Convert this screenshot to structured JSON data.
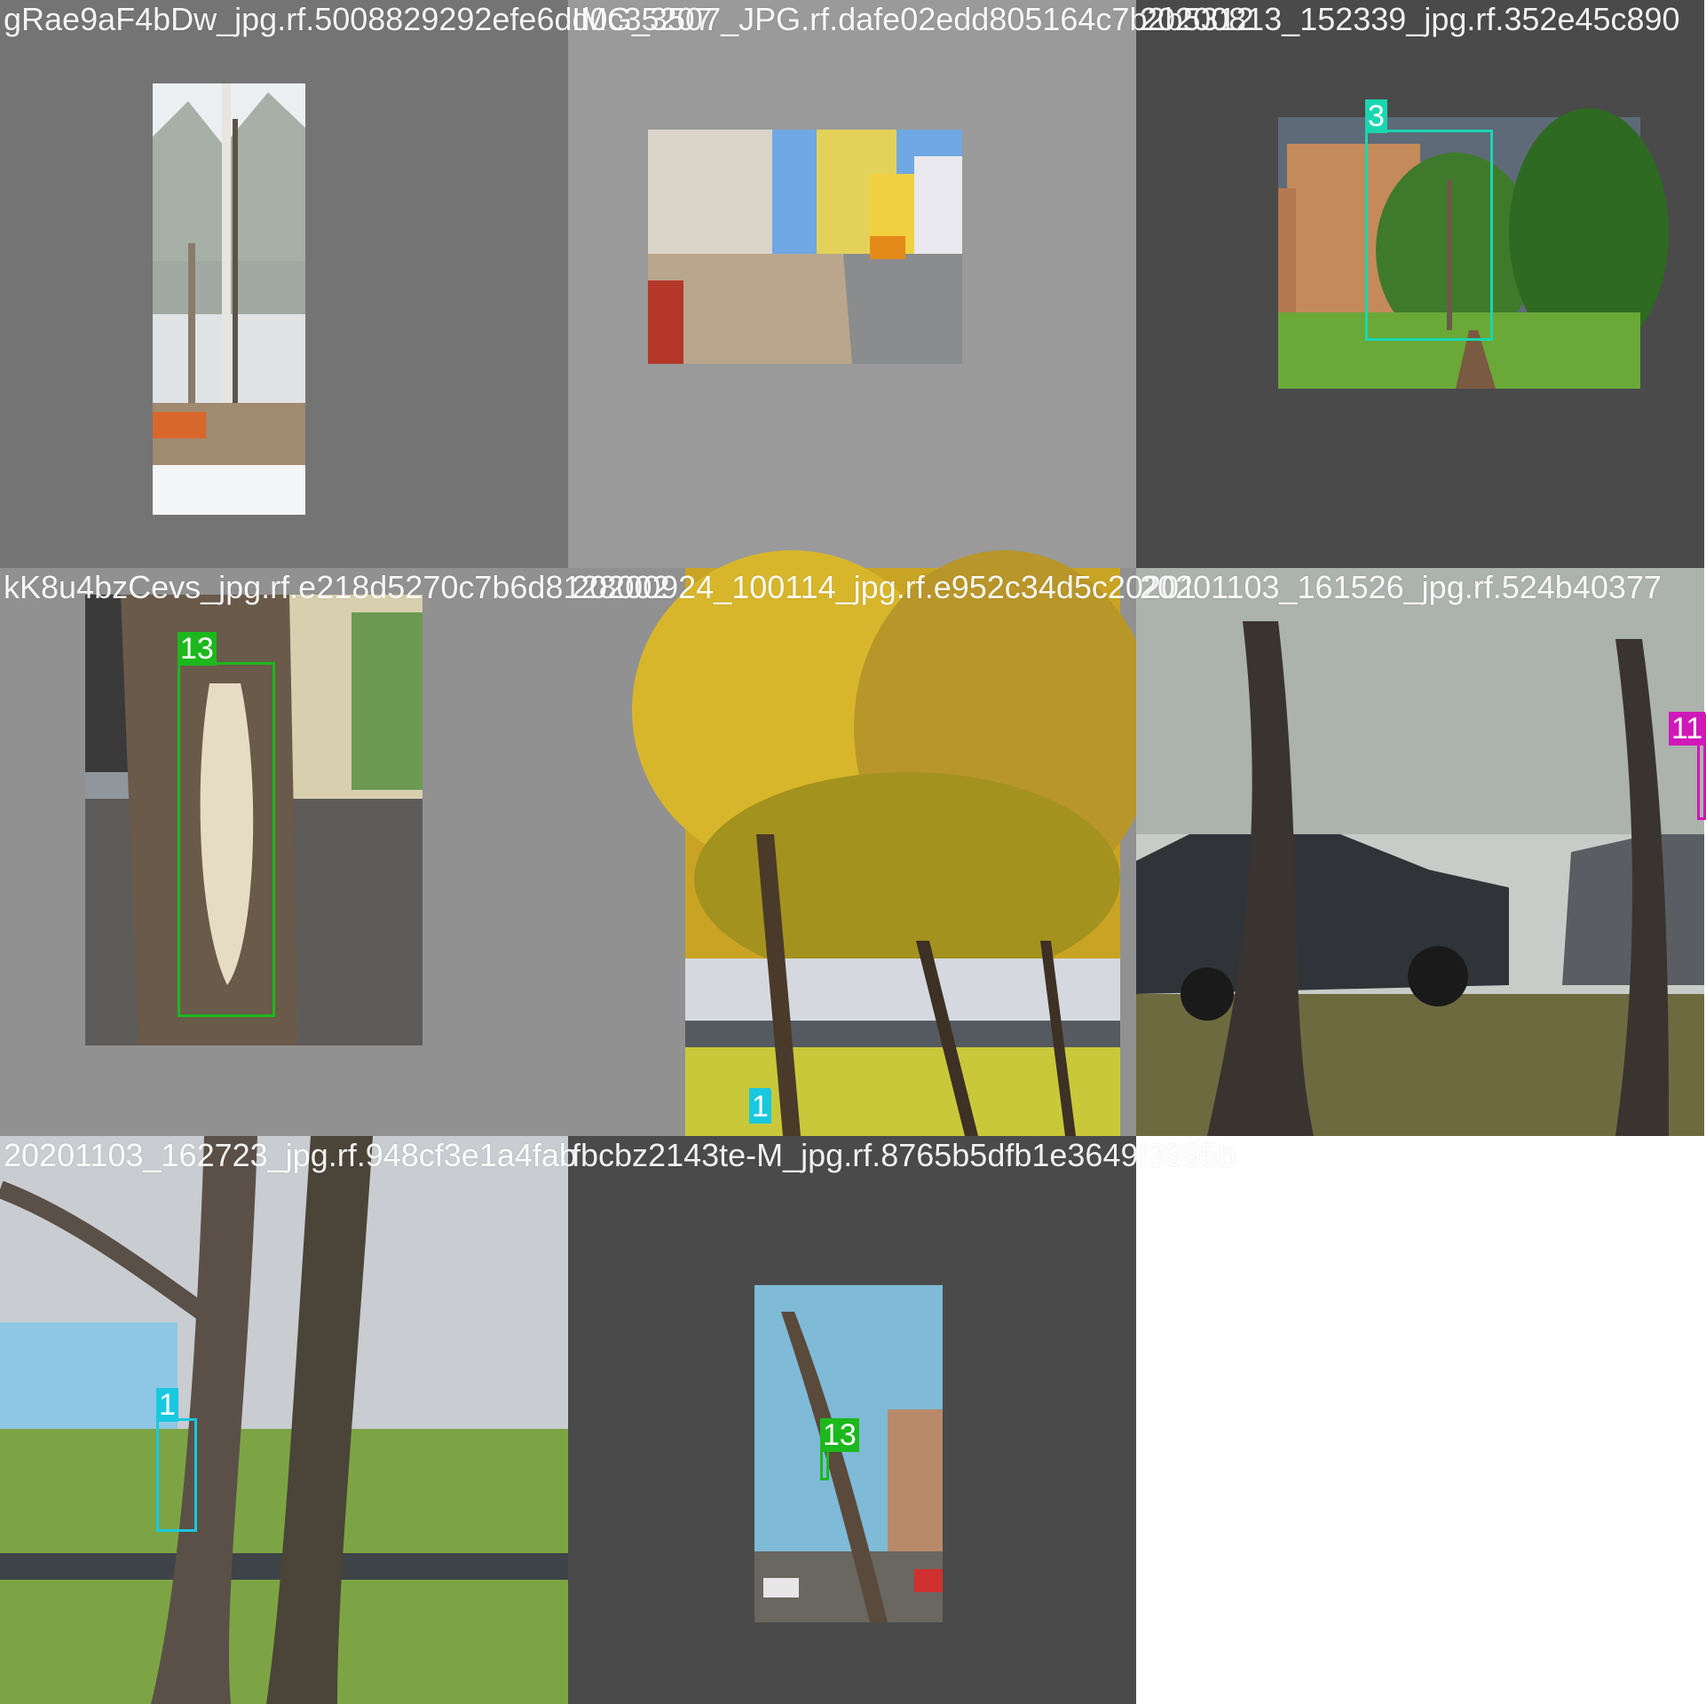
{
  "tiles": [
    {
      "caption": "gRae9aF4bDw_jpg.rf.5008829292efe6dd0c35207",
      "background": "#747474",
      "boxes": []
    },
    {
      "caption": "IMG_3507_JPG.rf.dafe02edd805164c7b2b5312",
      "background": "#9a9a9a",
      "boxes": []
    },
    {
      "caption": "20200813_152339_jpg.rf.352e45c890",
      "background": "#4a4a4a",
      "boxes": [
        {
          "label": "3",
          "color": "#19d6b0"
        }
      ]
    },
    {
      "caption": "kK8u4bzCevs_jpg.rf.e218d5270c7b6d8128002",
      "background": "#919191",
      "boxes": [
        {
          "label": "13",
          "color": "#1cb81c"
        }
      ]
    },
    {
      "caption": "20200924_100114_jpg.rf.e952c34d5c20201",
      "background": "#919191",
      "boxes": [
        {
          "label": "1",
          "color": "#19c8e0"
        }
      ]
    },
    {
      "caption": "20201103_161526_jpg.rf.524b40377",
      "background": "#555555",
      "boxes": [
        {
          "label": "11",
          "color": "#d018b8"
        }
      ]
    },
    {
      "caption": "20201103_162723_jpg.rf.948cf3e1a4fab",
      "background": "#777777",
      "boxes": [
        {
          "label": "1",
          "color": "#19c8e0"
        }
      ]
    },
    {
      "caption": "fbcbz2143te-M_jpg.rf.8765b5dfb1e3649f3995b",
      "background": "#4a4a4a",
      "boxes": [
        {
          "label": "13",
          "color": "#1cb81c"
        }
      ]
    }
  ]
}
